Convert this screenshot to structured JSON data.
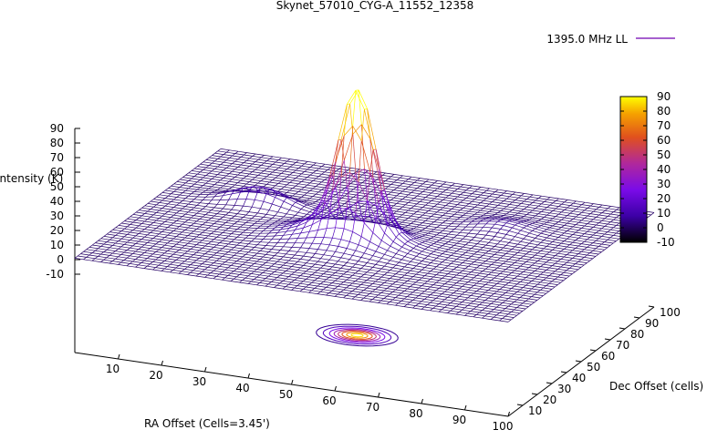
{
  "chart_data": {
    "type": "surface",
    "title": "Skynet_57010_CYG-A_11552_12358",
    "legend": {
      "label": "1395.0 MHz LL",
      "position": "top-right",
      "color": "#7000b0"
    },
    "xlabel": "RA Offset (Cells=3.45')",
    "ylabel": "Dec Offset (cells)",
    "zlabel": "Intensity (K)",
    "xlim": [
      0,
      100
    ],
    "ylim": [
      0,
      100
    ],
    "zlim": [
      -10,
      90
    ],
    "xticks": [
      10,
      20,
      30,
      40,
      50,
      60,
      70,
      80,
      90,
      100
    ],
    "yticks": [
      10,
      20,
      30,
      40,
      50,
      60,
      70,
      80,
      90,
      100
    ],
    "zticks": [
      90,
      80,
      70,
      60,
      50,
      40,
      30,
      20,
      10,
      0,
      -10
    ],
    "colorbar": {
      "ticks": [
        90,
        80,
        70,
        60,
        50,
        40,
        30,
        20,
        10,
        0,
        -10
      ],
      "range": [
        -10,
        90
      ],
      "colors": [
        "#000000",
        "#3c00a6",
        "#7a0be8",
        "#b0289c",
        "#e0501e",
        "#f5a000",
        "#ffff00"
      ]
    },
    "peak": {
      "x": 50,
      "y": 45,
      "value": 91
    },
    "contours": true,
    "grid": false
  }
}
